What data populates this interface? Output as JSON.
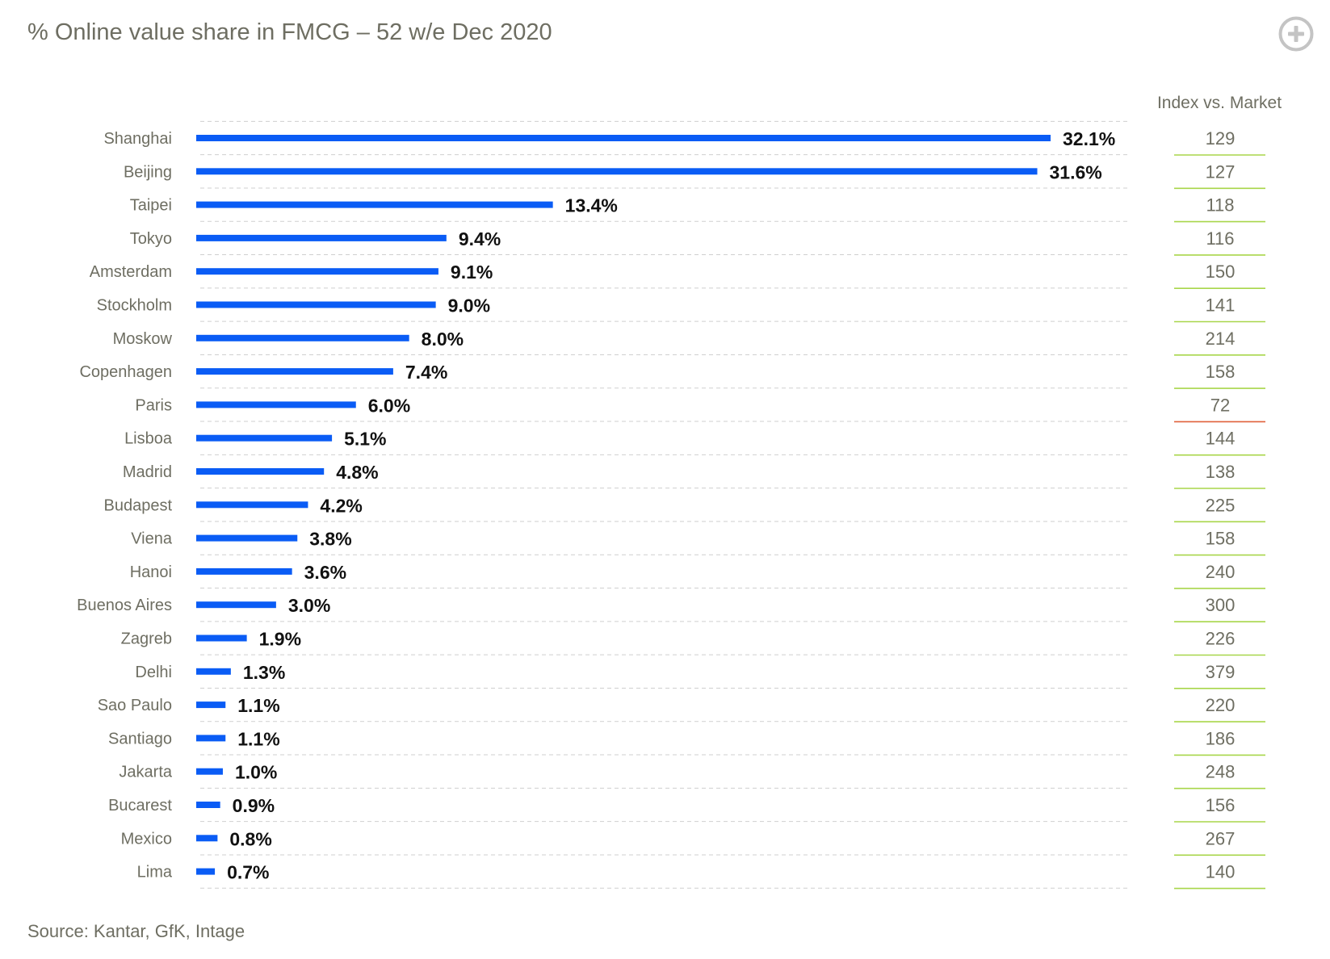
{
  "header": {
    "title": "% Online value share in FMCG – 52 w/e Dec 2020",
    "expand_icon": "plus-circle-icon"
  },
  "footer": {
    "source": "Source: Kantar, GfK, Intage"
  },
  "colors": {
    "bar": "#0a5cf5",
    "index_above": "#a8d64a",
    "index_below": "#e0603a",
    "text": "#6e6e62",
    "value_text": "#111111"
  },
  "chart_data": {
    "type": "bar",
    "orientation": "horizontal",
    "title": "% Online value share in FMCG – 52 w/e Dec 2020",
    "unit": "%",
    "categories": [
      "Shanghai",
      "Beijing",
      "Taipei",
      "Tokyo",
      "Amsterdam",
      "Stockholm",
      "Moskow",
      "Copenhagen",
      "Paris",
      "Lisboa",
      "Madrid",
      "Budapest",
      "Viena",
      "Hanoi",
      "Buenos Aires",
      "Zagreb",
      "Delhi",
      "Sao Paulo",
      "Santiago",
      "Jakarta",
      "Bucarest",
      "Mexico",
      "Lima"
    ],
    "values": [
      32.1,
      31.6,
      13.4,
      9.4,
      9.1,
      9.0,
      8.0,
      7.4,
      6.0,
      5.1,
      4.8,
      4.2,
      3.8,
      3.6,
      3.0,
      1.9,
      1.3,
      1.1,
      1.1,
      1.0,
      0.9,
      0.8,
      0.7
    ],
    "value_labels": [
      "32.1%",
      "31.6%",
      "13.4%",
      "9.4%",
      "9.1%",
      "9.0%",
      "8.0%",
      "7.4%",
      "6.0%",
      "5.1%",
      "4.8%",
      "4.2%",
      "3.8%",
      "3.6%",
      "3.0%",
      "1.9%",
      "1.3%",
      "1.1%",
      "1.1%",
      "1.0%",
      "0.9%",
      "0.8%",
      "0.7%"
    ],
    "xlim": [
      0,
      35
    ],
    "grid": "dashed-horizontal",
    "index_header": "Index vs. Market",
    "index_values": [
      129,
      127,
      118,
      116,
      150,
      141,
      214,
      158,
      72,
      144,
      138,
      225,
      158,
      240,
      300,
      226,
      379,
      220,
      186,
      248,
      156,
      267,
      140
    ]
  }
}
